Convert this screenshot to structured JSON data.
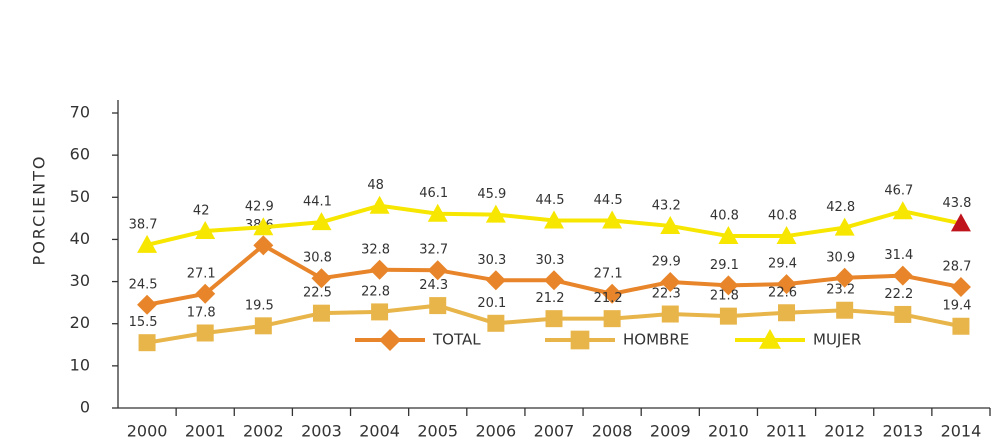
{
  "chart_data": {
    "type": "line",
    "y_label": "PORCIENTO",
    "x": [
      "2000",
      "2001",
      "2002",
      "2003",
      "2004",
      "2005",
      "2006",
      "2007",
      "2008",
      "2009",
      "2010",
      "2011",
      "2012",
      "2013",
      "2014"
    ],
    "ylim": [
      0,
      70
    ],
    "yticks": [
      0,
      10,
      20,
      30,
      40,
      50,
      60,
      70
    ],
    "grid": false,
    "legend": "lower center",
    "series": [
      {
        "name": "TOTAL",
        "color": "#e8852a",
        "marker": "diamond",
        "values": [
          24.5,
          27.1,
          38.6,
          30.8,
          32.8,
          32.7,
          30.3,
          30.3,
          27.1,
          29.9,
          29.1,
          29.4,
          30.9,
          31.4,
          28.7
        ]
      },
      {
        "name": "HOMBRE",
        "color": "#e8b54a",
        "marker": "square",
        "values": [
          15.5,
          17.8,
          19.5,
          22.5,
          22.8,
          24.3,
          20.1,
          21.2,
          21.2,
          22.3,
          21.8,
          22.6,
          23.2,
          22.2,
          19.4
        ]
      },
      {
        "name": "MUJER",
        "color": "#f7e600",
        "marker": "triangle",
        "last_marker_color": "#c0141c",
        "values": [
          38.7,
          42,
          42.9,
          44.1,
          48,
          46.1,
          45.9,
          44.5,
          44.5,
          43.2,
          40.8,
          40.8,
          42.8,
          46.7,
          43.8
        ]
      }
    ]
  }
}
